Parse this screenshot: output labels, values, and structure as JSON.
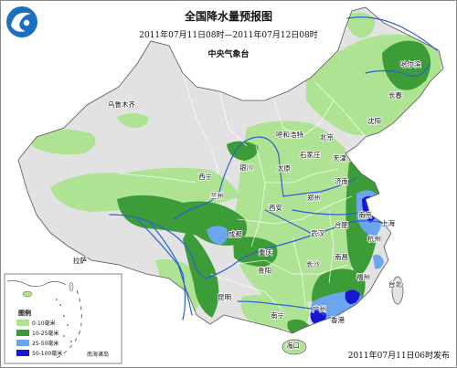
{
  "header": {
    "title": "全国降水量预报图",
    "period": "2011年07月11日08时—2011年07月12日08时",
    "agency": "中央气象台"
  },
  "footer": {
    "issued": "2011年07月11日06时发布"
  },
  "legend": {
    "title": "图例",
    "items": [
      {
        "label": "0-10毫米",
        "color": "#aee394"
      },
      {
        "label": "10-25毫米",
        "color": "#3c9c38"
      },
      {
        "label": "25-50毫米",
        "color": "#6aa6ee"
      },
      {
        "label": "50-100毫米",
        "color": "#1717d2"
      }
    ]
  },
  "inset": {
    "label": "南海诸岛"
  },
  "colors": {
    "land": "#e2e2e2",
    "river": "#2c5fd6",
    "coastline": "#555555",
    "logo": "#1d6fc0"
  },
  "cities": [
    "乌鲁木齐",
    "拉萨",
    "西宁",
    "兰州",
    "银川",
    "呼和浩特",
    "北京",
    "天津",
    "石家庄",
    "太原",
    "济南",
    "郑州",
    "西安",
    "成都",
    "重庆",
    "贵阳",
    "昆明",
    "南宁",
    "海口",
    "广州",
    "香港",
    "长沙",
    "南昌",
    "武汉",
    "合肥",
    "南京",
    "上海",
    "杭州",
    "福州",
    "台北",
    "沈阳",
    "长春",
    "哈尔滨"
  ]
}
